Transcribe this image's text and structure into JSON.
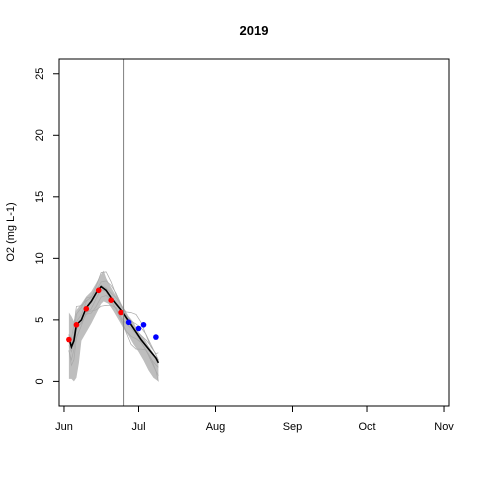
{
  "chart_data": {
    "type": "line",
    "title": "2019",
    "xlabel": "",
    "ylabel": "O2 (mg L-1)",
    "xlim": [
      -2,
      155
    ],
    "ylim": [
      -2,
      26.2
    ],
    "x_ticks": [
      {
        "label": "Jun",
        "value": 0
      },
      {
        "label": "Jul",
        "value": 30
      },
      {
        "label": "Aug",
        "value": 61
      },
      {
        "label": "Sep",
        "value": 92
      },
      {
        "label": "Oct",
        "value": 122
      },
      {
        "label": "Nov",
        "value": 153
      }
    ],
    "y_ticks": [
      0,
      5,
      10,
      15,
      20,
      25
    ],
    "vline_x": 24,
    "colors": {
      "ensemble": "#bebebe",
      "median": "#000000",
      "observed_train": "#ff0000",
      "observed_test": "#0000ff",
      "vline": "#7f7f7f"
    },
    "series": [
      {
        "name": "ensemble-band",
        "upper": [
          [
            2,
            5.6
          ],
          [
            3,
            5.3
          ],
          [
            4,
            4.9
          ],
          [
            5,
            5.8
          ],
          [
            7,
            6.3
          ],
          [
            9,
            6.9
          ],
          [
            11,
            7.3
          ],
          [
            13,
            8.0
          ],
          [
            15,
            8.7
          ],
          [
            16,
            9.0
          ],
          [
            17,
            8.4
          ],
          [
            18,
            8.0
          ],
          [
            20,
            7.3
          ],
          [
            22,
            6.6
          ],
          [
            24,
            6.0
          ],
          [
            26,
            5.3
          ],
          [
            28,
            4.8
          ],
          [
            30,
            4.0
          ],
          [
            32,
            3.6
          ],
          [
            34,
            2.9
          ],
          [
            36,
            2.3
          ],
          [
            38,
            1.5
          ]
        ],
        "lower": [
          [
            38,
            0.0
          ],
          [
            36,
            0.3
          ],
          [
            34,
            0.9
          ],
          [
            32,
            1.7
          ],
          [
            30,
            2.4
          ],
          [
            28,
            3.0
          ],
          [
            26,
            3.7
          ],
          [
            24,
            4.3
          ],
          [
            22,
            5.0
          ],
          [
            20,
            5.7
          ],
          [
            18,
            6.3
          ],
          [
            16,
            6.5
          ],
          [
            15,
            6.3
          ],
          [
            13,
            5.5
          ],
          [
            11,
            4.7
          ],
          [
            9,
            4.0
          ],
          [
            7,
            3.3
          ],
          [
            6,
            1.5
          ],
          [
            5,
            0.3
          ],
          [
            4,
            0.0
          ],
          [
            3,
            0.2
          ],
          [
            2,
            0.2
          ]
        ]
      },
      {
        "name": "ensemble-median",
        "points": [
          [
            2,
            3.5
          ],
          [
            3,
            2.8
          ],
          [
            4,
            3.3
          ],
          [
            5,
            4.6
          ],
          [
            7,
            5.0
          ],
          [
            9,
            6.0
          ],
          [
            11,
            6.5
          ],
          [
            13,
            7.2
          ],
          [
            15,
            7.7
          ],
          [
            17,
            7.4
          ],
          [
            19,
            6.8
          ],
          [
            21,
            6.3
          ],
          [
            23,
            5.8
          ],
          [
            25,
            5.2
          ],
          [
            27,
            4.6
          ],
          [
            29,
            4.0
          ],
          [
            31,
            3.4
          ],
          [
            33,
            2.9
          ],
          [
            35,
            2.4
          ],
          [
            37,
            1.9
          ],
          [
            38,
            1.5
          ]
        ]
      },
      {
        "name": "observed-calibration",
        "points": [
          [
            2,
            3.4
          ],
          [
            5,
            4.6
          ],
          [
            9,
            5.9
          ],
          [
            14,
            7.4
          ],
          [
            19,
            6.6
          ],
          [
            23,
            5.6
          ]
        ]
      },
      {
        "name": "observed-validation",
        "points": [
          [
            26,
            4.8
          ],
          [
            30,
            4.3
          ],
          [
            32,
            4.6
          ],
          [
            37,
            3.6
          ]
        ]
      }
    ]
  }
}
